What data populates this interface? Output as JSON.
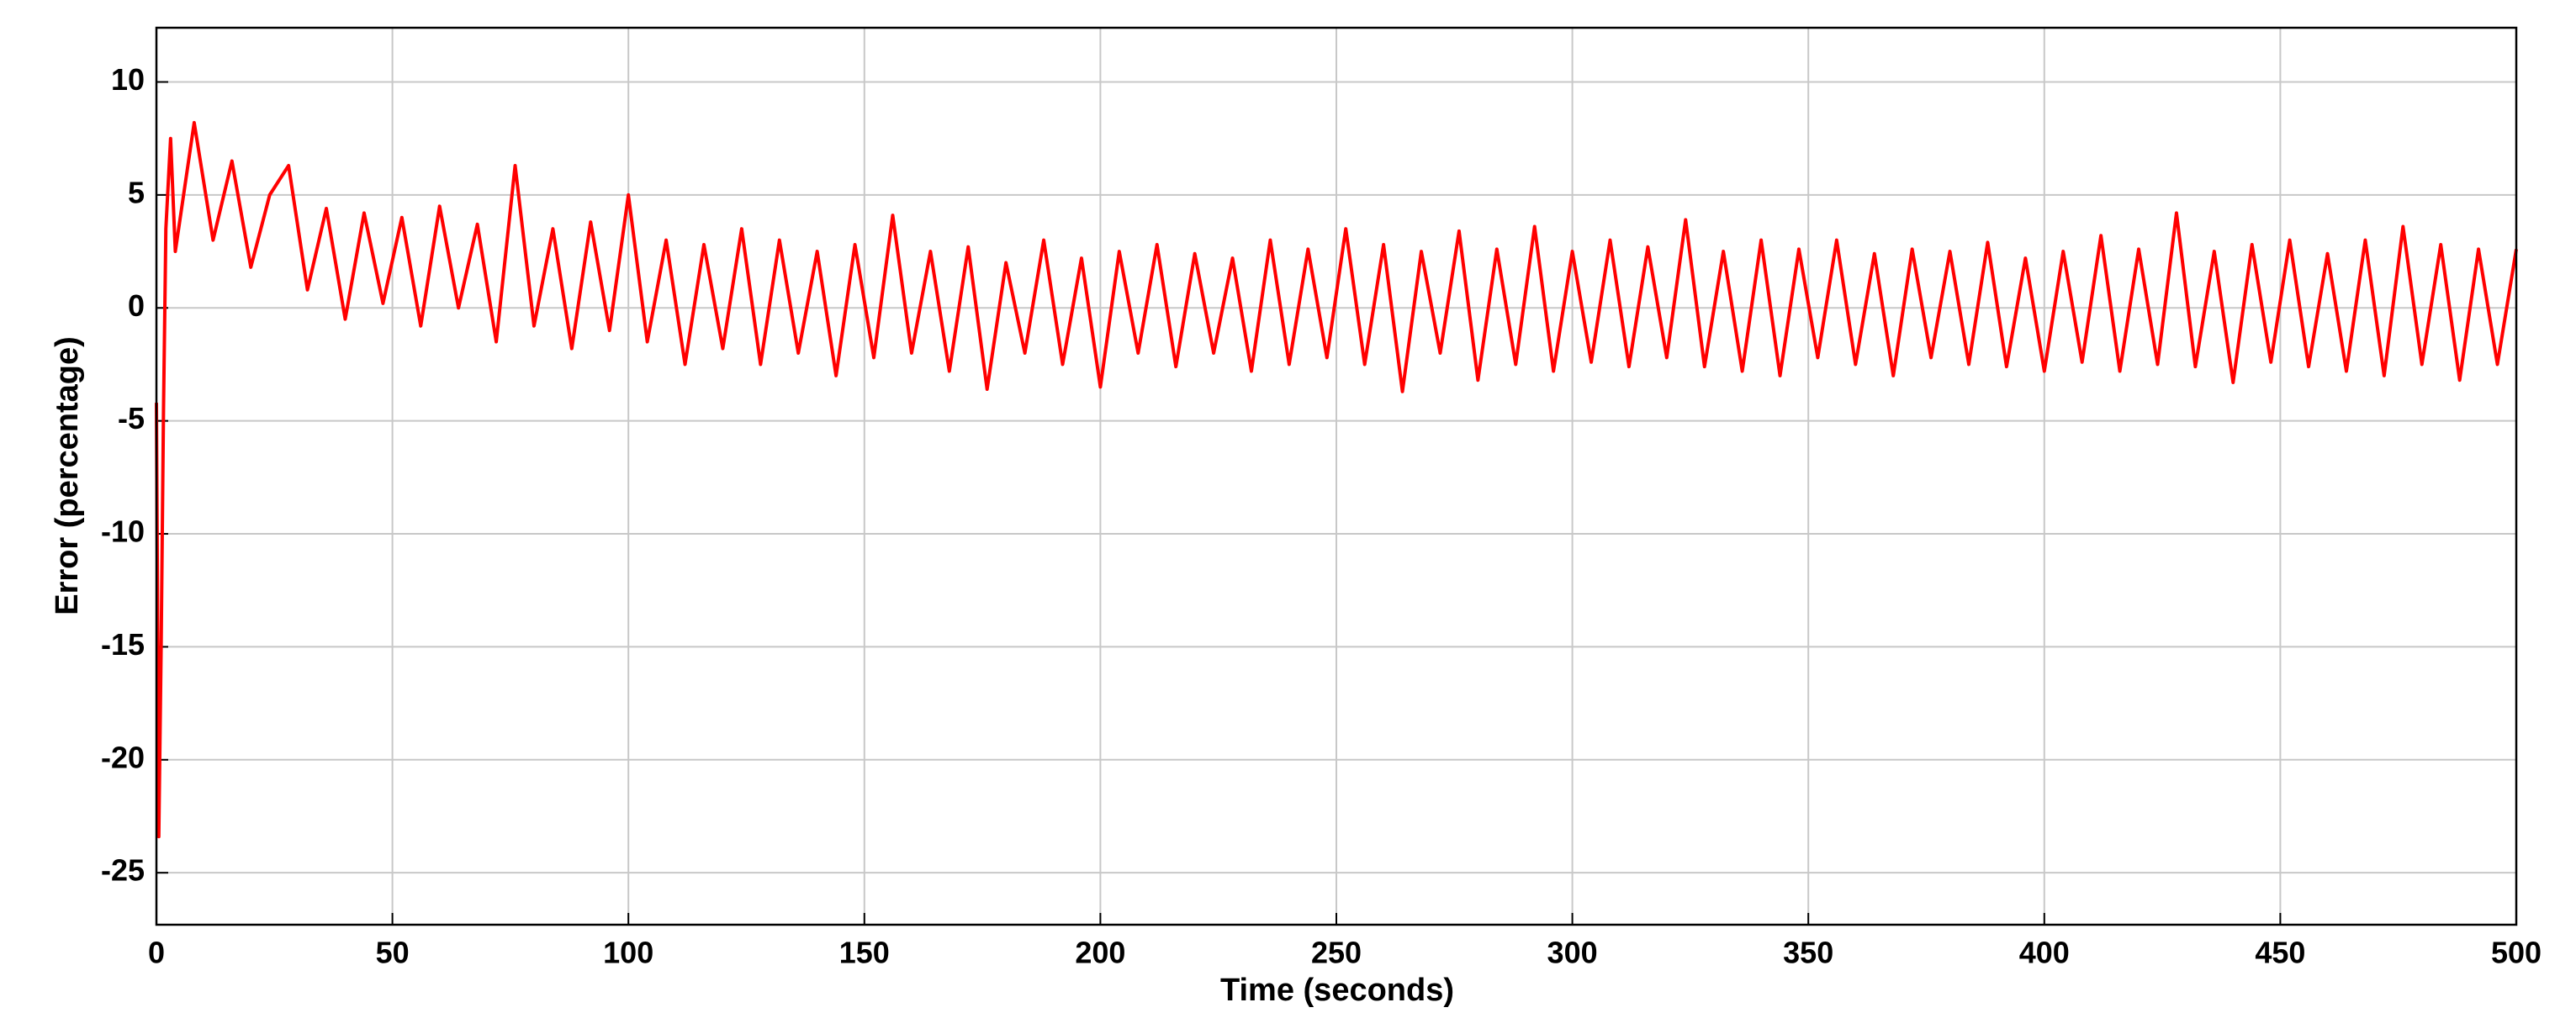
{
  "chart_data": {
    "type": "line",
    "xlabel": "Time (seconds)",
    "ylabel": "Error (percentage)",
    "color": "#ff0000",
    "grid": true,
    "xlim": [
      0,
      500
    ],
    "xticks": [
      0,
      50,
      100,
      150,
      200,
      250,
      300,
      350,
      400,
      450,
      500
    ],
    "ylim": [
      -27.3,
      12.4
    ],
    "yticks": [
      -25,
      -20,
      -15,
      -10,
      -5,
      0,
      5,
      10
    ],
    "x": [
      0,
      0.5,
      1,
      1.5,
      2,
      3,
      4,
      8,
      12,
      16,
      20,
      24,
      28,
      32,
      36,
      40,
      44,
      48,
      52,
      56,
      60,
      64,
      68,
      72,
      76,
      80,
      84,
      88,
      92,
      96,
      100,
      104,
      108,
      112,
      116,
      120,
      124,
      128,
      132,
      136,
      140,
      144,
      148,
      152,
      156,
      160,
      164,
      168,
      172,
      176,
      180,
      184,
      188,
      192,
      196,
      200,
      204,
      208,
      212,
      216,
      220,
      224,
      228,
      232,
      236,
      240,
      244,
      248,
      252,
      256,
      260,
      264,
      268,
      272,
      276,
      280,
      284,
      288,
      292,
      296,
      300,
      304,
      308,
      312,
      316,
      320,
      324,
      328,
      332,
      336,
      340,
      344,
      348,
      352,
      356,
      360,
      364,
      368,
      372,
      376,
      380,
      384,
      388,
      392,
      396,
      400,
      404,
      408,
      412,
      416,
      420,
      424,
      428,
      432,
      436,
      440,
      444,
      448,
      452,
      456,
      460,
      464,
      468,
      472,
      476,
      480,
      484,
      488,
      492,
      496,
      500
    ],
    "values": [
      -4.2,
      -23.4,
      -15,
      -4.5,
      3.5,
      7.5,
      2.5,
      8.2,
      3.0,
      6.5,
      1.8,
      5.0,
      6.3,
      0.8,
      4.4,
      -0.5,
      4.2,
      0.2,
      4.0,
      -0.8,
      4.5,
      0.0,
      3.7,
      -1.5,
      6.3,
      -0.8,
      3.5,
      -1.8,
      3.8,
      -1.0,
      5.0,
      -1.5,
      3.0,
      -2.5,
      2.8,
      -1.8,
      3.5,
      -2.5,
      3.0,
      -2.0,
      2.5,
      -3.0,
      2.8,
      -2.2,
      4.1,
      -2.0,
      2.5,
      -2.8,
      2.7,
      -3.6,
      2.0,
      -2.0,
      3.0,
      -2.5,
      2.2,
      -3.5,
      2.5,
      -2.0,
      2.8,
      -2.6,
      2.4,
      -2.0,
      2.2,
      -2.8,
      3.0,
      -2.5,
      2.6,
      -2.2,
      3.5,
      -2.5,
      2.8,
      -3.7,
      2.5,
      -2.0,
      3.4,
      -3.2,
      2.6,
      -2.5,
      3.6,
      -2.8,
      2.5,
      -2.4,
      3.0,
      -2.6,
      2.7,
      -2.2,
      3.9,
      -2.6,
      2.5,
      -2.8,
      3.0,
      -3.0,
      2.6,
      -2.2,
      3.0,
      -2.5,
      2.4,
      -3.0,
      2.6,
      -2.2,
      2.5,
      -2.5,
      2.9,
      -2.6,
      2.2,
      -2.8,
      2.5,
      -2.4,
      3.2,
      -2.8,
      2.6,
      -2.5,
      4.2,
      -2.6,
      2.5,
      -3.3,
      2.8,
      -2.4,
      3.0,
      -2.6,
      2.4,
      -2.8,
      3.0,
      -3.0,
      3.6,
      -2.5,
      2.8,
      -3.2,
      2.6,
      -2.5,
      2.6
    ]
  }
}
